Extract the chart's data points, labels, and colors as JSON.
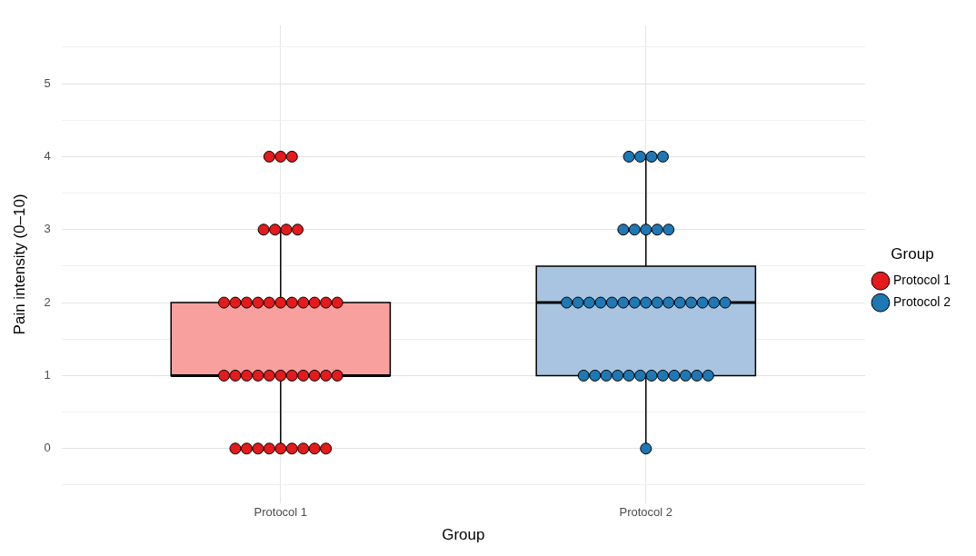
{
  "chart_data": {
    "type": "box",
    "xlabel": "Group",
    "ylabel": "Pain intensity (0–10)",
    "legend_title": "Group",
    "categories": [
      "Protocol 1",
      "Protocol 2"
    ],
    "boxes": [
      {
        "low": 0,
        "q1": 1,
        "median": 1,
        "q3": 2,
        "high": 3
      },
      {
        "low": 0,
        "q1": 1,
        "median": 2,
        "q3": 2.5,
        "high": 4
      }
    ],
    "colors": [
      "#f8a09d",
      "#a8c4e0"
    ],
    "series": [
      {
        "name": "Protocol 1",
        "type": "scatter",
        "color": "#e41a1c",
        "x": [
          "Protocol 1",
          "Protocol 1",
          "Protocol 1",
          "Protocol 1",
          "Protocol 1",
          "Protocol 1",
          "Protocol 1",
          "Protocol 1",
          "Protocol 1",
          "Protocol 1",
          "Protocol 1",
          "Protocol 1",
          "Protocol 1",
          "Protocol 1",
          "Protocol 1",
          "Protocol 1",
          "Protocol 1",
          "Protocol 1",
          "Protocol 1",
          "Protocol 1",
          "Protocol 1",
          "Protocol 1",
          "Protocol 1",
          "Protocol 1",
          "Protocol 1",
          "Protocol 1",
          "Protocol 1",
          "Protocol 1",
          "Protocol 1",
          "Protocol 1",
          "Protocol 1",
          "Protocol 1",
          "Protocol 1",
          "Protocol 1",
          "Protocol 1",
          "Protocol 1",
          "Protocol 1",
          "Protocol 1"
        ],
        "values": [
          4,
          4,
          4,
          3,
          3,
          3,
          3,
          2,
          2,
          2,
          2,
          2,
          2,
          2,
          2,
          2,
          2,
          2,
          1,
          1,
          1,
          1,
          1,
          1,
          1,
          1,
          1,
          1,
          1,
          0,
          0,
          0,
          0,
          0,
          0,
          0,
          0,
          0
        ]
      },
      {
        "name": "Protocol 2",
        "type": "scatter",
        "color": "#1f78b4",
        "x": [
          "Protocol 2",
          "Protocol 2",
          "Protocol 2",
          "Protocol 2",
          "Protocol 2",
          "Protocol 2",
          "Protocol 2",
          "Protocol 2",
          "Protocol 2",
          "Protocol 2",
          "Protocol 2",
          "Protocol 2",
          "Protocol 2",
          "Protocol 2",
          "Protocol 2",
          "Protocol 2",
          "Protocol 2",
          "Protocol 2",
          "Protocol 2",
          "Protocol 2",
          "Protocol 2",
          "Protocol 2",
          "Protocol 2",
          "Protocol 2",
          "Protocol 2",
          "Protocol 2",
          "Protocol 2",
          "Protocol 2",
          "Protocol 2",
          "Protocol 2",
          "Protocol 2",
          "Protocol 2",
          "Protocol 2",
          "Protocol 2",
          "Protocol 2",
          "Protocol 2",
          "Protocol 2"
        ],
        "values": [
          4,
          4,
          4,
          4,
          3,
          3,
          3,
          3,
          3,
          2,
          2,
          2,
          2,
          2,
          2,
          2,
          2,
          2,
          2,
          2,
          2,
          2,
          2,
          2,
          1,
          1,
          1,
          1,
          1,
          1,
          1,
          1,
          1,
          1,
          1,
          1,
          0
        ]
      }
    ],
    "ylim": [
      -0.75,
      5.8
    ],
    "yticks": [
      {
        "value": -0.5,
        "label": null
      },
      0,
      {
        "value": 0.5,
        "label": null
      },
      1,
      {
        "value": 1.5,
        "label": null
      },
      2,
      {
        "value": 2.5,
        "label": null
      },
      3,
      {
        "value": 3.5,
        "label": null
      },
      4,
      {
        "value": 4.5,
        "label": null
      },
      5,
      {
        "value": 5.5,
        "label": null
      }
    ],
    "grid": true,
    "legend": "right",
    "marker": "circle"
  }
}
